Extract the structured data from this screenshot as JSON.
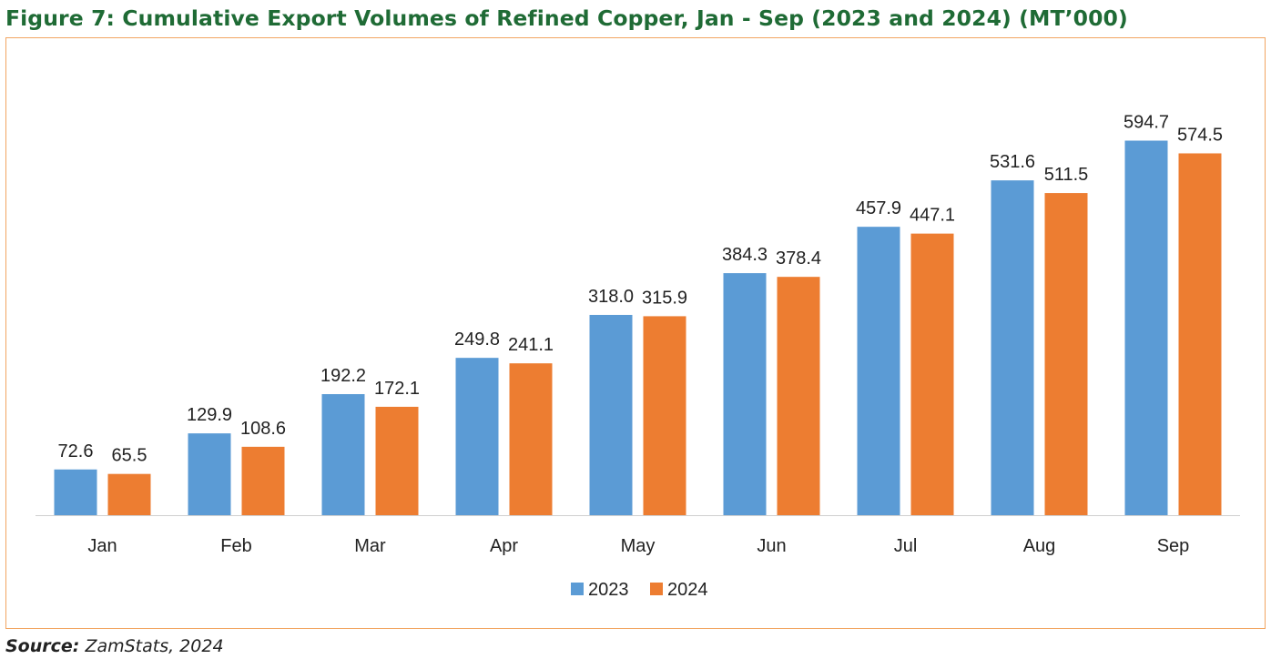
{
  "title": "Figure 7: Cumulative Export Volumes of Refined Copper, Jan - Sep (2023 and 2024) (MT’000)",
  "source": {
    "label": "Source:",
    "text": "ZamStats, 2024"
  },
  "chart_data": {
    "type": "bar",
    "title": "Figure 7: Cumulative Export Volumes of Refined Copper, Jan - Sep (2023 and 2024) (MT’000)",
    "xlabel": "",
    "ylabel": "",
    "categories": [
      "Jan",
      "Feb",
      "Mar",
      "Apr",
      "May",
      "Jun",
      "Jul",
      "Aug",
      "Sep"
    ],
    "series": [
      {
        "name": "2023",
        "color": "#5b9bd5",
        "values": [
          72.6,
          129.9,
          192.2,
          249.8,
          318.0,
          384.3,
          457.9,
          531.6,
          594.7
        ],
        "labels": [
          "72.6",
          "129.9",
          "192.2",
          "249.8",
          "318.0",
          "384.3",
          "457.9",
          "531.6",
          "594.7"
        ]
      },
      {
        "name": "2024",
        "color": "#ed7d31",
        "values": [
          65.5,
          108.6,
          172.1,
          241.1,
          315.9,
          378.4,
          447.1,
          511.5,
          574.5
        ],
        "labels": [
          "65.5",
          "108.6",
          "172.1",
          "241.1",
          "315.9",
          "378.4",
          "447.1",
          "511.5",
          "574.5"
        ]
      }
    ],
    "ylim": [
      0,
      620
    ],
    "grid": false,
    "legend": "bottom-center"
  }
}
